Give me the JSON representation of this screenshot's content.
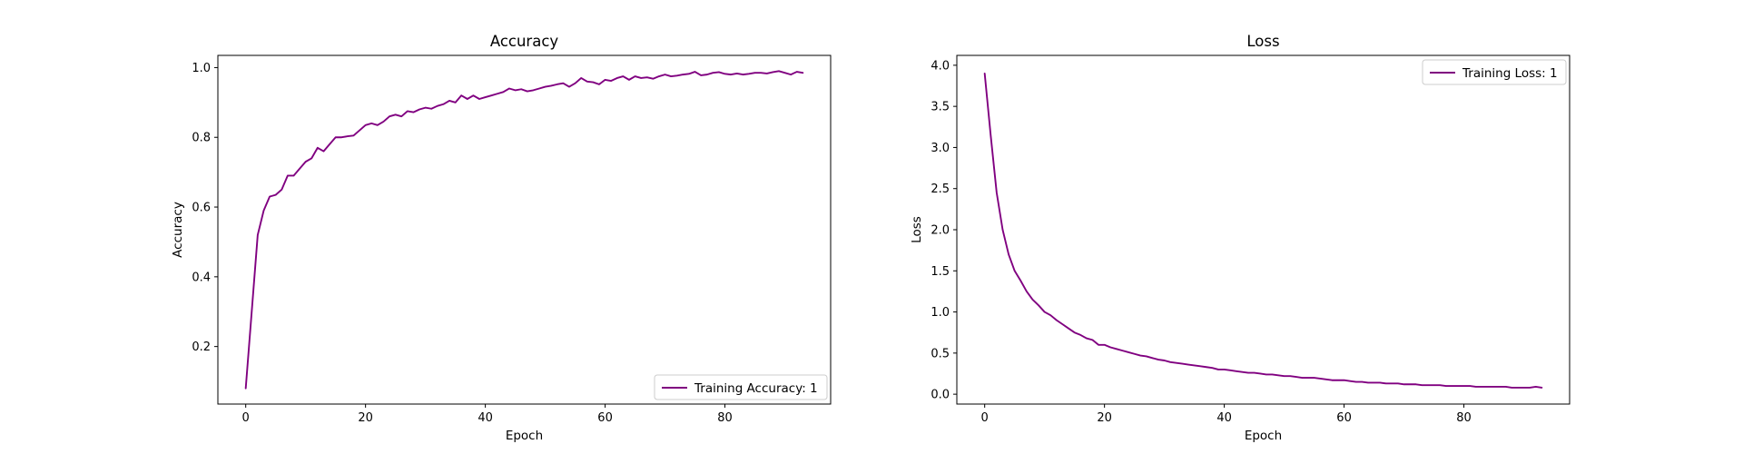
{
  "chart_data": [
    {
      "type": "line",
      "title": "Accuracy",
      "xlabel": "Epoch",
      "ylabel": "Accuracy",
      "xlim": [
        -4.65,
        97.65
      ],
      "ylim": [
        0.035,
        1.035
      ],
      "xticks": [
        0,
        20,
        40,
        60,
        80
      ],
      "yticks": [
        0.2,
        0.4,
        0.6,
        0.8,
        1.0
      ],
      "xtick_labels": [
        "0",
        "20",
        "40",
        "60",
        "80"
      ],
      "ytick_labels": [
        "0.2",
        "0.4",
        "0.6",
        "0.8",
        "1.0"
      ],
      "grid": false,
      "legend_position": "lower-right",
      "series": [
        {
          "name": "Training Accuracy: 1",
          "color": "#800080",
          "x": [
            0,
            1,
            2,
            3,
            4,
            5,
            6,
            7,
            8,
            9,
            10,
            11,
            12,
            13,
            14,
            15,
            16,
            17,
            18,
            19,
            20,
            21,
            22,
            23,
            24,
            25,
            26,
            27,
            28,
            29,
            30,
            31,
            32,
            33,
            34,
            35,
            36,
            37,
            38,
            39,
            40,
            41,
            42,
            43,
            44,
            45,
            46,
            47,
            48,
            49,
            50,
            51,
            52,
            53,
            54,
            55,
            56,
            57,
            58,
            59,
            60,
            61,
            62,
            63,
            64,
            65,
            66,
            67,
            68,
            69,
            70,
            71,
            72,
            73,
            74,
            75,
            76,
            77,
            78,
            79,
            80,
            81,
            82,
            83,
            84,
            85,
            86,
            87,
            88,
            89,
            90,
            91,
            92,
            93
          ],
          "y": [
            0.08,
            0.3,
            0.52,
            0.59,
            0.63,
            0.635,
            0.65,
            0.69,
            0.69,
            0.71,
            0.73,
            0.74,
            0.77,
            0.76,
            0.78,
            0.8,
            0.8,
            0.803,
            0.805,
            0.82,
            0.835,
            0.84,
            0.835,
            0.845,
            0.86,
            0.865,
            0.86,
            0.875,
            0.872,
            0.88,
            0.885,
            0.882,
            0.89,
            0.895,
            0.905,
            0.9,
            0.92,
            0.91,
            0.92,
            0.91,
            0.915,
            0.92,
            0.925,
            0.93,
            0.94,
            0.935,
            0.938,
            0.932,
            0.935,
            0.94,
            0.945,
            0.948,
            0.952,
            0.955,
            0.945,
            0.955,
            0.97,
            0.96,
            0.958,
            0.952,
            0.965,
            0.962,
            0.97,
            0.975,
            0.965,
            0.975,
            0.97,
            0.972,
            0.968,
            0.975,
            0.98,
            0.975,
            0.977,
            0.98,
            0.982,
            0.988,
            0.978,
            0.98,
            0.985,
            0.987,
            0.982,
            0.98,
            0.983,
            0.98,
            0.982,
            0.985,
            0.985,
            0.983,
            0.987,
            0.99,
            0.985,
            0.98,
            0.988,
            0.985
          ]
        }
      ]
    },
    {
      "type": "line",
      "title": "Loss",
      "xlabel": "Epoch",
      "ylabel": "Loss",
      "xlim": [
        -4.65,
        97.65
      ],
      "ylim": [
        -0.12,
        4.12
      ],
      "xticks": [
        0,
        20,
        40,
        60,
        80
      ],
      "yticks": [
        0.0,
        0.5,
        1.0,
        1.5,
        2.0,
        2.5,
        3.0,
        3.5,
        4.0
      ],
      "xtick_labels": [
        "0",
        "20",
        "40",
        "60",
        "80"
      ],
      "ytick_labels": [
        "0.0",
        "0.5",
        "1.0",
        "1.5",
        "2.0",
        "2.5",
        "3.0",
        "3.5",
        "4.0"
      ],
      "grid": false,
      "legend_position": "upper-right",
      "series": [
        {
          "name": "Training Loss: 1",
          "color": "#800080",
          "x": [
            0,
            1,
            2,
            3,
            4,
            5,
            6,
            7,
            8,
            9,
            10,
            11,
            12,
            13,
            14,
            15,
            16,
            17,
            18,
            19,
            20,
            21,
            22,
            23,
            24,
            25,
            26,
            27,
            28,
            29,
            30,
            31,
            32,
            33,
            34,
            35,
            36,
            37,
            38,
            39,
            40,
            41,
            42,
            43,
            44,
            45,
            46,
            47,
            48,
            49,
            50,
            51,
            52,
            53,
            54,
            55,
            56,
            57,
            58,
            59,
            60,
            61,
            62,
            63,
            64,
            65,
            66,
            67,
            68,
            69,
            70,
            71,
            72,
            73,
            74,
            75,
            76,
            77,
            78,
            79,
            80,
            81,
            82,
            83,
            84,
            85,
            86,
            87,
            88,
            89,
            90,
            91,
            92,
            93
          ],
          "y": [
            3.9,
            3.15,
            2.45,
            2.0,
            1.7,
            1.5,
            1.38,
            1.25,
            1.15,
            1.08,
            1.0,
            0.96,
            0.9,
            0.85,
            0.8,
            0.75,
            0.72,
            0.68,
            0.66,
            0.6,
            0.6,
            0.57,
            0.55,
            0.53,
            0.51,
            0.49,
            0.47,
            0.46,
            0.44,
            0.42,
            0.41,
            0.39,
            0.38,
            0.37,
            0.36,
            0.35,
            0.34,
            0.33,
            0.32,
            0.3,
            0.3,
            0.29,
            0.28,
            0.27,
            0.26,
            0.26,
            0.25,
            0.24,
            0.24,
            0.23,
            0.22,
            0.22,
            0.21,
            0.2,
            0.2,
            0.2,
            0.19,
            0.18,
            0.17,
            0.17,
            0.17,
            0.16,
            0.15,
            0.15,
            0.14,
            0.14,
            0.14,
            0.13,
            0.13,
            0.13,
            0.12,
            0.12,
            0.12,
            0.11,
            0.11,
            0.11,
            0.11,
            0.1,
            0.1,
            0.1,
            0.1,
            0.1,
            0.09,
            0.09,
            0.09,
            0.09,
            0.09,
            0.09,
            0.08,
            0.08,
            0.08,
            0.08,
            0.09,
            0.08
          ]
        }
      ]
    }
  ]
}
